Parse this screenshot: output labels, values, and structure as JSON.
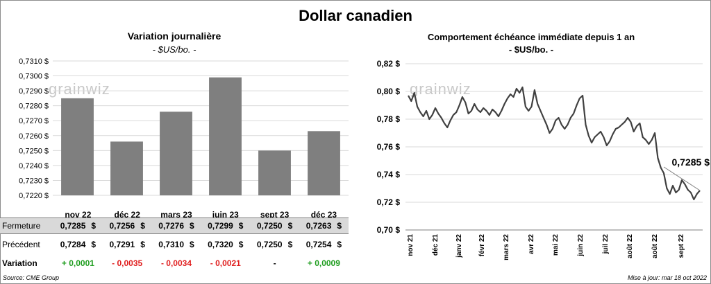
{
  "title": "Dollar canadien",
  "left_chart": {
    "title": "Variation  journalière",
    "unit": "- $US/bo. -",
    "watermark": "grainwiz",
    "chart_data": {
      "type": "bar",
      "categories": [
        "nov 22",
        "déc 22",
        "mars 23",
        "juin 23",
        "sept 23",
        "déc 23"
      ],
      "values": [
        0.7285,
        0.7256,
        0.7276,
        0.7299,
        0.725,
        0.7263
      ],
      "ylim": [
        0.722,
        0.731
      ],
      "yticks": [
        "0,7220 $",
        "0,7230 $",
        "0,7240 $",
        "0,7250 $",
        "0,7260 $",
        "0,7270 $",
        "0,7280 $",
        "0,7290 $",
        "0,7300 $",
        "0,7310 $"
      ],
      "bar_color": "#7f7f7f",
      "grid": true
    }
  },
  "table": {
    "rows": [
      {
        "label": "Fermeture",
        "values": [
          "0,7285",
          "0,7256",
          "0,7276",
          "0,7299",
          "0,7250",
          "0,7263"
        ]
      },
      {
        "label": "Précédent",
        "values": [
          "0,7284",
          "0,7291",
          "0,7310",
          "0,7320",
          "0,7250",
          "0,7254"
        ]
      }
    ],
    "currency": "$",
    "variation_label": "Variation",
    "variation": [
      {
        "text": "+ 0,0001",
        "sign": "pos"
      },
      {
        "text": "- 0,0035",
        "sign": "neg"
      },
      {
        "text": "- 0,0034",
        "sign": "neg"
      },
      {
        "text": "- 0,0021",
        "sign": "neg"
      },
      {
        "text": "-",
        "sign": "zero"
      },
      {
        "text": "+ 0,0009",
        "sign": "pos"
      }
    ]
  },
  "right_chart": {
    "title": "Comportement échéance immédiate depuis 1 an",
    "unit": "- $US/bo. -",
    "watermark": "grainwiz",
    "chart_data": {
      "type": "line",
      "ylim": [
        0.7,
        0.82
      ],
      "yticks": [
        "0,70 $",
        "0,72 $",
        "0,74 $",
        "0,76 $",
        "0,78 $",
        "0,80 $",
        "0,82 $"
      ],
      "xticks": [
        "nov 21",
        "déc 21",
        "janv 22",
        "févr 22",
        "mars 22",
        "avr 22",
        "mai 22",
        "juin 22",
        "juil 22",
        "août 22",
        "août 22",
        "sept 22"
      ],
      "annotation": "0,7285 $",
      "line_color": "#404040",
      "series": [
        {
          "values": [
            0.797,
            0.793,
            0.799,
            0.789,
            0.785,
            0.782,
            0.786,
            0.78,
            0.783,
            0.788,
            0.784,
            0.781,
            0.777,
            0.774,
            0.779,
            0.783,
            0.785,
            0.79,
            0.796,
            0.792,
            0.784,
            0.786,
            0.791,
            0.787,
            0.785,
            0.788,
            0.786,
            0.783,
            0.787,
            0.785,
            0.782,
            0.786,
            0.791,
            0.795,
            0.798,
            0.796,
            0.802,
            0.799,
            0.803,
            0.789,
            0.786,
            0.789,
            0.801,
            0.791,
            0.786,
            0.781,
            0.776,
            0.77,
            0.773,
            0.779,
            0.781,
            0.776,
            0.773,
            0.776,
            0.781,
            0.784,
            0.79,
            0.795,
            0.797,
            0.776,
            0.768,
            0.763,
            0.767,
            0.769,
            0.771,
            0.767,
            0.761,
            0.764,
            0.769,
            0.773,
            0.774,
            0.776,
            0.778,
            0.781,
            0.778,
            0.771,
            0.775,
            0.777,
            0.767,
            0.765,
            0.762,
            0.765,
            0.77,
            0.752,
            0.745,
            0.741,
            0.73,
            0.726,
            0.732,
            0.727,
            0.729,
            0.736,
            0.733,
            0.729,
            0.727,
            0.722,
            0.726,
            0.7285
          ]
        }
      ],
      "grid": true
    }
  },
  "footer": {
    "source": "Source: CME Group",
    "updated": "Mise à jour: mar 18 oct 2022"
  }
}
